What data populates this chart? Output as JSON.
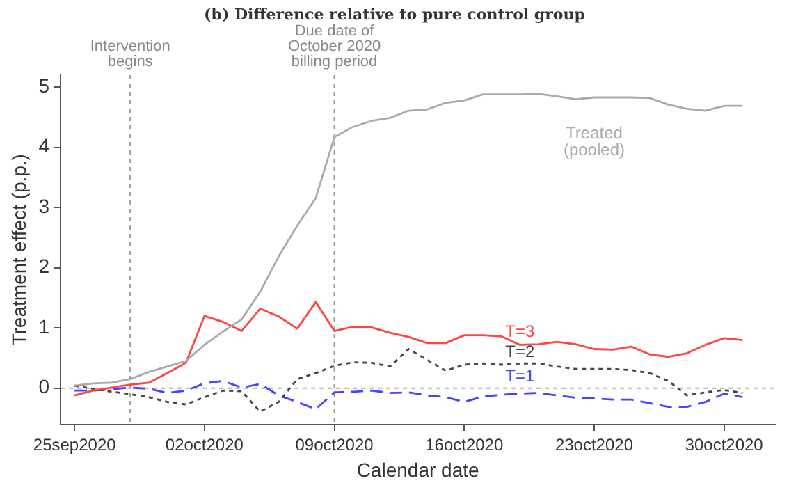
{
  "chart_data": {
    "type": "line",
    "title": "(b) Difference relative to pure control group",
    "xlabel": "Calendar date",
    "ylabel": "Treatment effect (p.p.)",
    "x": [
      "2020-09-25",
      "2020-09-26",
      "2020-09-27",
      "2020-09-28",
      "2020-09-29",
      "2020-09-30",
      "2020-10-01",
      "2020-10-02",
      "2020-10-03",
      "2020-10-04",
      "2020-10-05",
      "2020-10-06",
      "2020-10-07",
      "2020-10-08",
      "2020-10-09",
      "2020-10-10",
      "2020-10-11",
      "2020-10-12",
      "2020-10-13",
      "2020-10-14",
      "2020-10-15",
      "2020-10-16",
      "2020-10-17",
      "2020-10-18",
      "2020-10-19",
      "2020-10-20",
      "2020-10-21",
      "2020-10-22",
      "2020-10-23",
      "2020-10-24",
      "2020-10-25",
      "2020-10-26",
      "2020-10-27",
      "2020-10-28",
      "2020-10-29",
      "2020-10-30",
      "2020-10-31"
    ],
    "series": [
      {
        "name": "Treated (pooled)",
        "color": "#aaaaaa",
        "line_style": "solid",
        "values": [
          0.04,
          0.08,
          0.09,
          0.15,
          0.27,
          0.36,
          0.45,
          0.72,
          0.94,
          1.14,
          1.6,
          2.19,
          2.7,
          3.16,
          4.17,
          4.34,
          4.44,
          4.49,
          4.61,
          4.63,
          4.74,
          4.78,
          4.88,
          4.88,
          4.88,
          4.89,
          4.85,
          4.8,
          4.83,
          4.83,
          4.83,
          4.82,
          4.71,
          4.64,
          4.61,
          4.69,
          4.69
        ]
      },
      {
        "name": "T=3",
        "color": "#ff4444",
        "line_style": "solid",
        "values": [
          -0.12,
          -0.04,
          0.01,
          0.06,
          0.09,
          0.25,
          0.42,
          1.2,
          1.1,
          0.95,
          1.32,
          1.19,
          0.99,
          1.43,
          0.95,
          1.02,
          1.01,
          0.92,
          0.85,
          0.75,
          0.75,
          0.88,
          0.88,
          0.86,
          0.72,
          0.73,
          0.77,
          0.73,
          0.65,
          0.64,
          0.69,
          0.56,
          0.52,
          0.58,
          0.72,
          0.83,
          0.8
        ]
      },
      {
        "name": "T=2",
        "color": "#444444",
        "line_style": "dotted",
        "values": [
          0.04,
          -0.01,
          -0.06,
          -0.1,
          -0.15,
          -0.23,
          -0.27,
          -0.15,
          -0.04,
          -0.05,
          -0.39,
          -0.23,
          0.15,
          0.25,
          0.37,
          0.43,
          0.42,
          0.36,
          0.65,
          0.47,
          0.29,
          0.39,
          0.41,
          0.39,
          0.41,
          0.41,
          0.36,
          0.32,
          0.32,
          0.32,
          0.3,
          0.25,
          0.12,
          -0.12,
          -0.07,
          -0.03,
          -0.08
        ]
      },
      {
        "name": "T=1",
        "color": "#4444ff",
        "line_style": "dashed",
        "values": [
          -0.04,
          -0.04,
          -0.02,
          0.01,
          -0.01,
          -0.08,
          -0.04,
          0.08,
          0.12,
          0.01,
          0.07,
          -0.12,
          -0.23,
          -0.35,
          -0.07,
          -0.06,
          -0.04,
          -0.08,
          -0.07,
          -0.12,
          -0.15,
          -0.23,
          -0.14,
          -0.11,
          -0.09,
          -0.08,
          -0.12,
          -0.16,
          -0.17,
          -0.19,
          -0.19,
          -0.25,
          -0.31,
          -0.31,
          -0.23,
          -0.09,
          -0.15
        ]
      }
    ],
    "xlim": [
      "2020-09-24T06:00",
      "2020-11-01T18:00"
    ],
    "xticks": [
      {
        "value": "2020-09-25",
        "label": "25sep2020"
      },
      {
        "value": "2020-10-02",
        "label": "02oct2020"
      },
      {
        "value": "2020-10-09",
        "label": "09oct2020"
      },
      {
        "value": "2020-10-16",
        "label": "16oct2020"
      },
      {
        "value": "2020-10-23",
        "label": "23oct2020"
      },
      {
        "value": "2020-10-30",
        "label": "30oct2020"
      }
    ],
    "ylim": [
      -0.6,
      5.2
    ],
    "yticks": [
      0,
      1,
      2,
      3,
      4,
      5
    ],
    "ref_lines": [
      {
        "axis": "x",
        "value": "2020-09-28",
        "label": "Intervention begins",
        "color": "#999999",
        "line_style": "dotted"
      },
      {
        "axis": "x",
        "value": "2020-10-09",
        "label": "Due date of October 2020 billing period",
        "color": "#999999",
        "line_style": "dotted"
      },
      {
        "axis": "y",
        "value": 0,
        "color": "#aaaaaa",
        "line_style": "dotted"
      }
    ],
    "legend": false,
    "marker": "none"
  }
}
